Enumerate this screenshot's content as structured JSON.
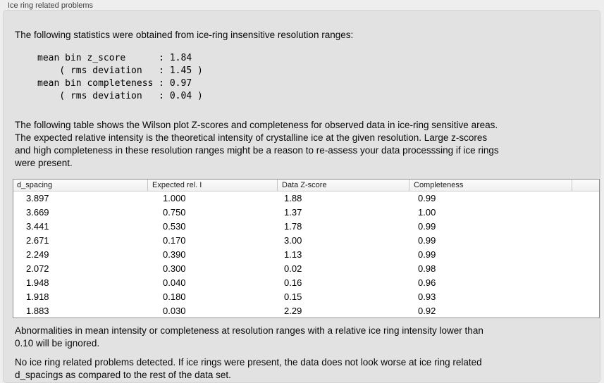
{
  "panel": {
    "title": "Ice ring related problems",
    "intro": "The following statistics were obtained from ice-ring insensitive resolution ranges:",
    "stats_block": "mean bin z_score      : 1.84\n    ( rms deviation   : 1.45 )\nmean bin completeness : 0.97\n    ( rms deviation   : 0.04 )",
    "stats": {
      "mean_bin_z_score": "1.84",
      "z_score_rms_deviation": "1.45",
      "mean_bin_completeness": "0.97",
      "completeness_rms_deviation": "0.04"
    },
    "table_description": "The following table shows the Wilson plot Z-scores and completeness for observed data in ice-ring sensitive areas.\nThe expected relative intensity is the theoretical intensity of crystalline ice at the given resolution. Large z-scores\nand high completeness in these resolution ranges might be a reason to re-assess your data processsing if ice rings\nwere present.",
    "ignore_note": "Abnormalities in mean intensity or completeness at resolution ranges with a relative ice ring intensity lower than\n0.10 will be ignored.",
    "conclusion": "No ice ring related problems detected. If ice rings were present, the data does not look worse at ice ring related\nd_spacings as compared to the rest of the data set."
  },
  "table": {
    "columns": [
      "d_spacing",
      "Expected rel. I",
      "Data Z-score",
      "Completeness"
    ],
    "rows": [
      [
        "3.897",
        "1.000",
        "1.88",
        "0.99"
      ],
      [
        "3.669",
        "0.750",
        "1.37",
        "1.00"
      ],
      [
        "3.441",
        "0.530",
        "1.78",
        "0.99"
      ],
      [
        "2.671",
        "0.170",
        "3.00",
        "0.99"
      ],
      [
        "2.249",
        "0.390",
        "1.13",
        "0.99"
      ],
      [
        "2.072",
        "0.300",
        "0.02",
        "0.98"
      ],
      [
        "1.948",
        "0.040",
        "0.16",
        "0.96"
      ],
      [
        "1.918",
        "0.180",
        "0.15",
        "0.93"
      ],
      [
        "1.883",
        "0.030",
        "2.29",
        "0.92"
      ]
    ]
  },
  "colors": {
    "page_background": "#eeeeee",
    "groupbox_background": "#e2e2e2",
    "groupbox_border": "#d4d4d4",
    "table_border": "#8f8f8f",
    "table_header_background": "#f4f4f4",
    "text": "#0a0a0a"
  }
}
